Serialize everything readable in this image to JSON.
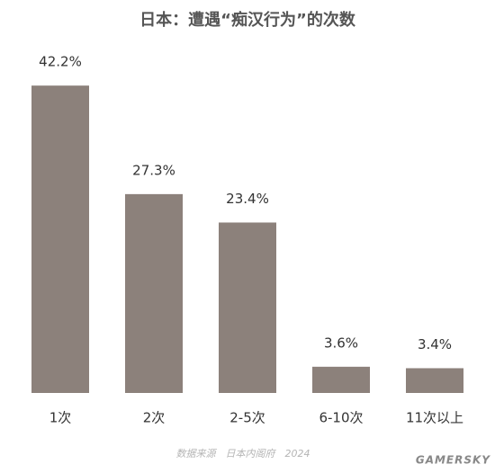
{
  "chart_data": {
    "type": "bar",
    "title": "日本：遭遇“痴汉行为”的次数",
    "categories": [
      "1次",
      "2次",
      "2-5次",
      "6-10次",
      "11次以上"
    ],
    "values": [
      42.2,
      27.3,
      23.4,
      3.6,
      3.4
    ],
    "value_labels": [
      "42.2%",
      "27.3%",
      "23.4%",
      "3.6%",
      "3.4%"
    ],
    "color": "#8c817b",
    "source": "数据来源　日本内阁府　2024",
    "watermark": "GAMERSKY"
  }
}
